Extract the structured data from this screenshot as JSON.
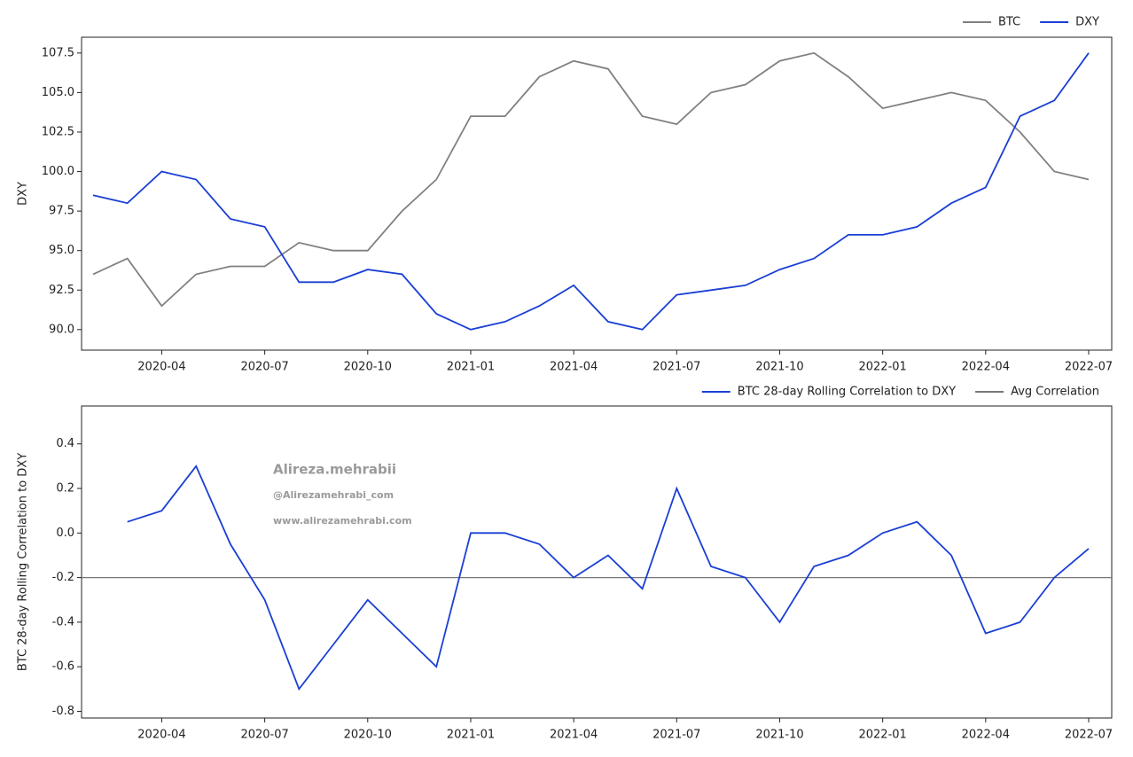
{
  "chart_data": [
    {
      "type": "line",
      "ylabel": "DXY",
      "legend": "upper right",
      "x": [
        "2020-02",
        "2020-03",
        "2020-04",
        "2020-05",
        "2020-06",
        "2020-07",
        "2020-08",
        "2020-09",
        "2020-10",
        "2020-11",
        "2020-12",
        "2021-01",
        "2021-02",
        "2021-03",
        "2021-04",
        "2021-05",
        "2021-06",
        "2021-07",
        "2021-08",
        "2021-09",
        "2021-10",
        "2021-11",
        "2021-12",
        "2022-01",
        "2022-02",
        "2022-03",
        "2022-04",
        "2022-05",
        "2022-06",
        "2022-07"
      ],
      "series": [
        {
          "name": "BTC",
          "color": "#808080",
          "values": [
            93.5,
            94.5,
            91.5,
            93.5,
            94.0,
            94.0,
            95.5,
            95.0,
            95.0,
            97.5,
            99.5,
            103.5,
            103.5,
            106.0,
            107.0,
            106.5,
            103.5,
            103.0,
            105.0,
            105.5,
            107.0,
            107.5,
            106.0,
            104.0,
            104.5,
            105.0,
            104.5,
            102.5,
            100.0,
            99.5
          ]
        },
        {
          "name": "DXY",
          "color": "#1a3fd4",
          "values": [
            98.5,
            98.0,
            100.0,
            99.5,
            97.0,
            96.5,
            93.0,
            93.0,
            93.8,
            93.5,
            91.0,
            90.0,
            90.5,
            91.5,
            92.8,
            90.5,
            90.0,
            92.2,
            92.5,
            92.8,
            93.8,
            94.5,
            96.0,
            96.0,
            96.5,
            98.0,
            99.0,
            103.5,
            104.5,
            107.5
          ]
        }
      ],
      "xlim": [
        "2020-02",
        "2022-07"
      ],
      "xticks": [
        "2020-04",
        "2020-07",
        "2020-10",
        "2021-01",
        "2021-04",
        "2021-07",
        "2021-10",
        "2022-01",
        "2022-04",
        "2022-07"
      ],
      "ylim": [
        88.7,
        108.5
      ],
      "yticks": [
        {
          "value": 90,
          "label": "90.0"
        },
        92.5,
        {
          "value": 95,
          "label": "95.0"
        },
        97.5,
        {
          "value": 100,
          "label": "100.0"
        },
        102.5,
        {
          "value": 105,
          "label": "105.0"
        },
        107.5
      ],
      "grid": false
    },
    {
      "type": "line",
      "ylabel": "BTC 28-day Rolling Correlation to DXY",
      "legend": "upper right",
      "x": [
        "2020-02",
        "2020-03",
        "2020-04",
        "2020-05",
        "2020-06",
        "2020-07",
        "2020-08",
        "2020-09",
        "2020-10",
        "2020-11",
        "2020-12",
        "2021-01",
        "2021-02",
        "2021-03",
        "2021-04",
        "2021-05",
        "2021-06",
        "2021-07",
        "2021-08",
        "2021-09",
        "2021-10",
        "2021-11",
        "2021-12",
        "2022-01",
        "2022-02",
        "2022-03",
        "2022-04",
        "2022-05",
        "2022-06",
        "2022-07"
      ],
      "series": [
        {
          "name": "BTC 28-day Rolling Correlation to DXY",
          "color": "#1a3fd4",
          "values": [
            null,
            0.05,
            0.1,
            0.3,
            -0.05,
            -0.3,
            -0.7,
            -0.5,
            -0.3,
            -0.45,
            -0.6,
            0.0,
            0.0,
            -0.05,
            -0.2,
            -0.1,
            -0.25,
            0.2,
            -0.15,
            -0.2,
            -0.4,
            -0.15,
            -0.1,
            0.0,
            0.05,
            -0.1,
            -0.45,
            -0.4,
            -0.2,
            -0.07
          ]
        }
      ],
      "reference_line": {
        "name": "Avg Correlation",
        "color": "#777777",
        "value": -0.2
      },
      "annotations": [
        "Alireza.mehrabii",
        "@Alirezamehrabi_com",
        "www.alirezamehrabi.com"
      ],
      "xlim": [
        "2020-02",
        "2022-07"
      ],
      "xticks": [
        "2020-04",
        "2020-07",
        "2020-10",
        "2021-01",
        "2021-04",
        "2021-07",
        "2021-10",
        "2022-01",
        "2022-04",
        "2022-07"
      ],
      "ylim": [
        -0.83,
        0.57
      ],
      "yticks": [
        -0.8,
        -0.6,
        -0.4,
        -0.2,
        {
          "value": 0,
          "label": "0.0"
        },
        0.2,
        0.4
      ],
      "grid": false
    }
  ]
}
